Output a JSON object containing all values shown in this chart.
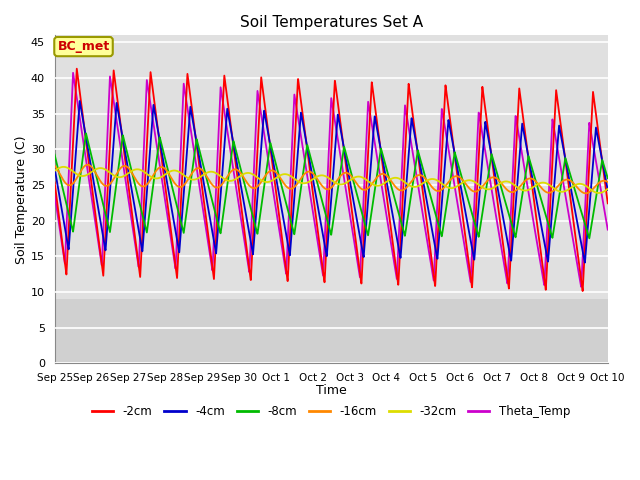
{
  "title": "Soil Temperatures Set A",
  "xlabel": "Time",
  "ylabel": "Soil Temperature (C)",
  "ylim": [
    0,
    46
  ],
  "yticks": [
    0,
    5,
    10,
    15,
    20,
    25,
    30,
    35,
    40,
    45
  ],
  "x_labels": [
    "Sep 25",
    "Sep 26",
    "Sep 27",
    "Sep 28",
    "Sep 29",
    "Sep 30",
    "Oct 1",
    "Oct 2",
    "Oct 3",
    "Oct 4",
    "Oct 5",
    "Oct 6",
    "Oct 7",
    "Oct 8",
    "Oct 9",
    "Oct 10"
  ],
  "colors": {
    "-2cm": "#ff0000",
    "-4cm": "#0000cc",
    "-8cm": "#00bb00",
    "-16cm": "#ff8800",
    "-32cm": "#dddd00",
    "Theta_Temp": "#cc00cc"
  },
  "annotation_text": "BC_met",
  "annotation_color": "#cc0000",
  "annotation_bg": "#ffff99",
  "background_plot": "#e0e0e0",
  "background_above": "#f0f0f0",
  "background_fig": "#ffffff",
  "grid_color": "#ffffff",
  "n_days": 15,
  "pts_per_day": 288
}
